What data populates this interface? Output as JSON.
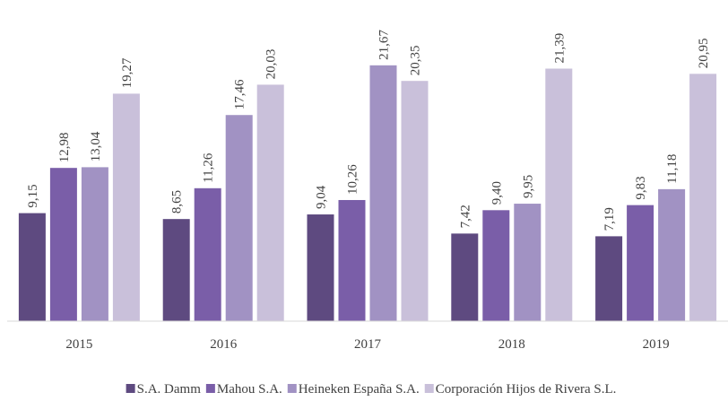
{
  "chart_data": {
    "type": "bar",
    "categories": [
      "2015",
      "2016",
      "2017",
      "2018",
      "2019"
    ],
    "series": [
      {
        "name": "S.A. Damm",
        "color": "#5e4a80",
        "values": [
          9.15,
          8.65,
          9.04,
          7.42,
          7.19
        ],
        "value_labels": [
          "9,15",
          "8,65",
          "9,04",
          "7,42",
          "7,19"
        ]
      },
      {
        "name": "Mahou S.A.",
        "color": "#7a5ea8",
        "values": [
          12.98,
          11.26,
          10.26,
          9.4,
          9.83
        ],
        "value_labels": [
          "12,98",
          "11,26",
          "10,26",
          "9,40",
          "9,83"
        ]
      },
      {
        "name": "Heineken España S.A.",
        "color": "#a192c3",
        "values": [
          13.04,
          17.46,
          21.67,
          9.95,
          11.18
        ],
        "value_labels": [
          "13,04",
          "17,46",
          "21,67",
          "9,95",
          "11,18"
        ]
      },
      {
        "name": "Corporación Hijos de Rivera S.L.",
        "color": "#c9c0da",
        "values": [
          19.27,
          20.03,
          20.35,
          21.39,
          20.95
        ],
        "value_labels": [
          "19,27",
          "20,03",
          "20,35",
          "21,39",
          "20,95"
        ]
      }
    ],
    "ylim": [
      0,
      25
    ],
    "legend": "bottom"
  }
}
